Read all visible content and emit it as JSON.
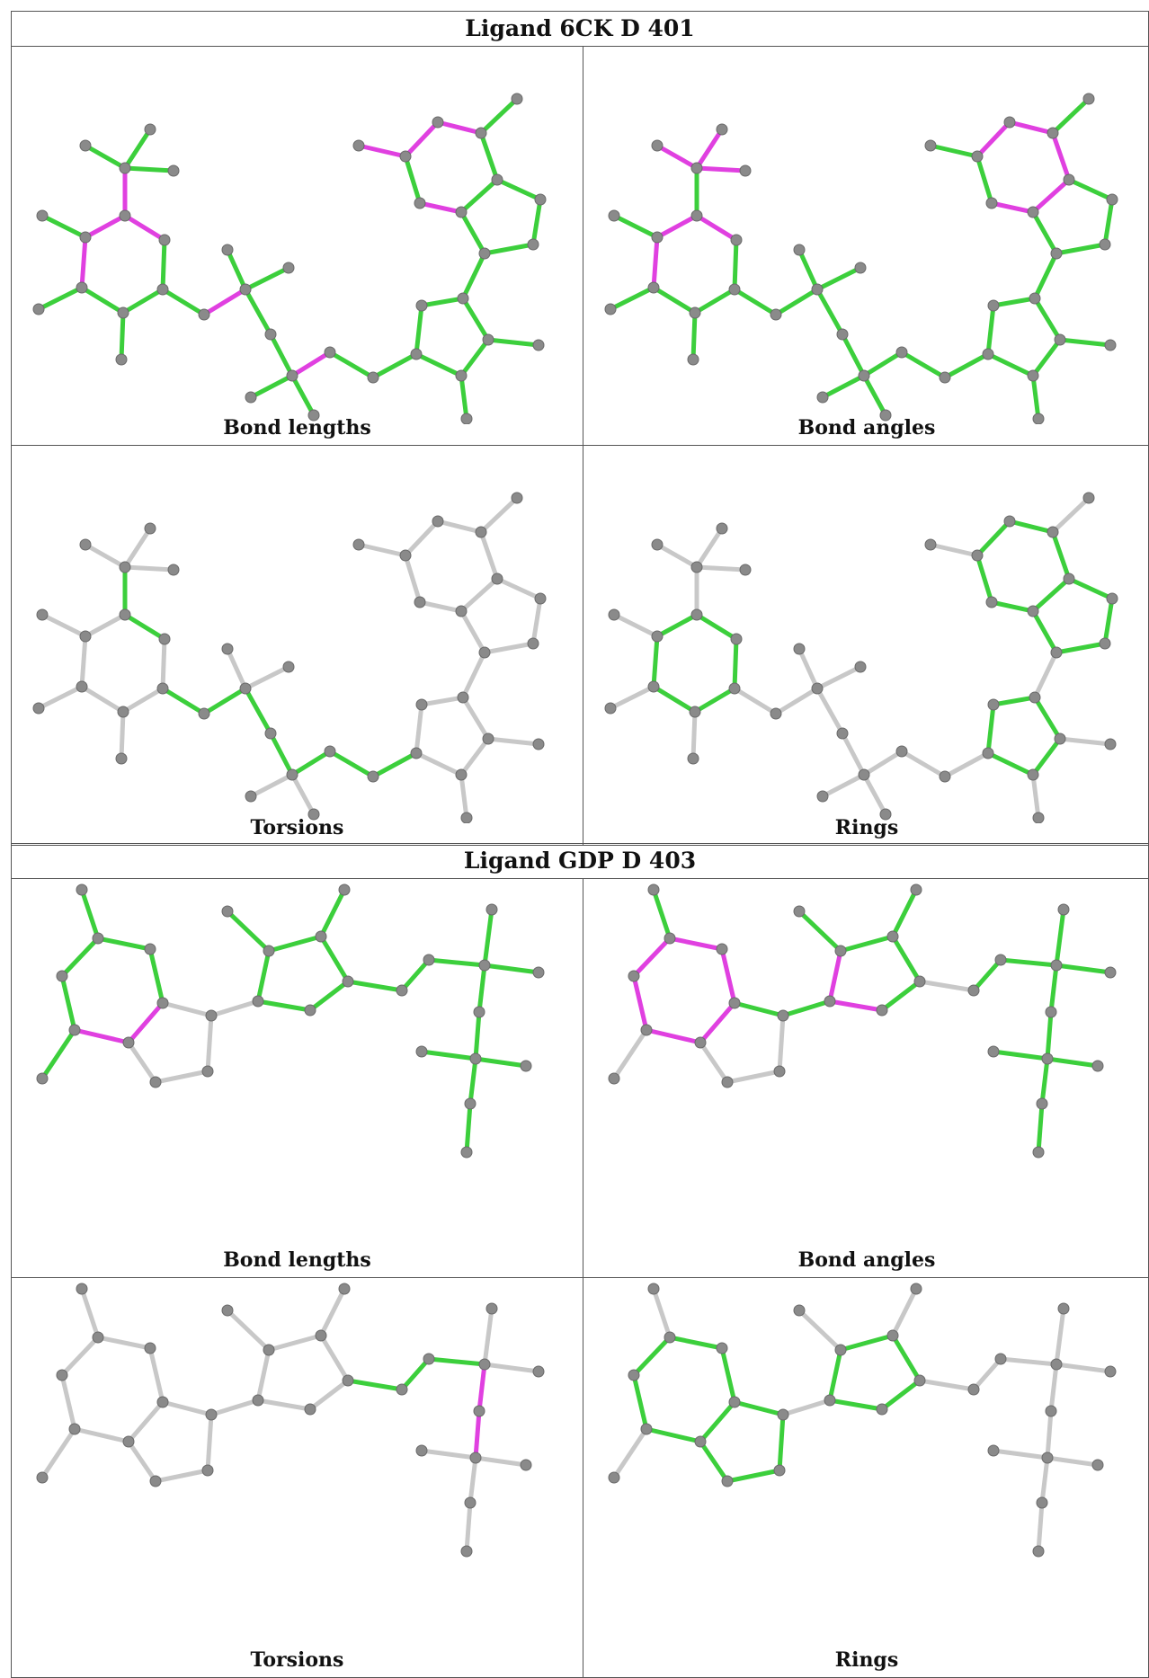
{
  "colors": {
    "outlier": "#e040e0",
    "ok": "#3ccf3c",
    "unassessed": "#c8c8c8",
    "atom": "#8a8a8a"
  },
  "blocks": [
    {
      "title": "Ligand 6CK D 401",
      "panels": [
        {
          "caption": "Bond lengths",
          "molecule": "6ck",
          "assessment": "bond_lengths"
        },
        {
          "caption": "Bond angles",
          "molecule": "6ck",
          "assessment": "bond_angles"
        },
        {
          "caption": "Torsions",
          "molecule": "6ck",
          "assessment": "torsions"
        },
        {
          "caption": "Rings",
          "molecule": "6ck",
          "assessment": "rings"
        }
      ]
    },
    {
      "title": "Ligand GDP D 403",
      "panels": [
        {
          "caption": "Bond lengths",
          "molecule": "gdp",
          "assessment": "bond_lengths"
        },
        {
          "caption": "Bond angles",
          "molecule": "gdp",
          "assessment": "bond_angles"
        },
        {
          "caption": "Torsions",
          "molecule": "gdp",
          "assessment": "torsions"
        },
        {
          "caption": "Rings",
          "molecule": "gdp",
          "assessment": "rings"
        }
      ]
    }
  ]
}
